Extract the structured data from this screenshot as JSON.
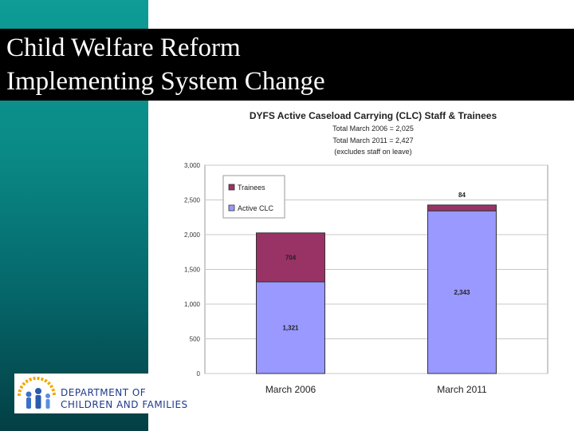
{
  "slide": {
    "title_line1": "Child Welfare Reform",
    "title_line2": "Implementing System Change"
  },
  "logo": {
    "line1": "DEPARTMENT OF",
    "line2": "CHILDREN AND FAMILIES"
  },
  "chart_data": {
    "type": "bar",
    "stacked": true,
    "title": "DYFS Active Caseload Carrying (CLC) Staff & Trainees",
    "subtitles": [
      "Total March 2006 = 2,025",
      "Total March 2011 = 2,427",
      "(excludes staff on leave)"
    ],
    "categories": [
      "March 2006",
      "March 2011"
    ],
    "series": [
      {
        "name": "Active CLC",
        "values": [
          1321,
          2343
        ],
        "labels": [
          "1,321",
          "2,343"
        ],
        "color": "#9999ff"
      },
      {
        "name": "Trainees",
        "values": [
          704,
          84
        ],
        "labels": [
          "704",
          "84"
        ],
        "color": "#993366"
      }
    ],
    "ylim": [
      0,
      3000
    ],
    "yticks": [
      0,
      500,
      1000,
      1500,
      2000,
      2500,
      3000
    ],
    "ytick_labels": [
      "0",
      "500",
      "1,000",
      "1,500",
      "2,000",
      "2,500",
      "3,000"
    ],
    "grid": true,
    "legend_position": "top-left"
  }
}
